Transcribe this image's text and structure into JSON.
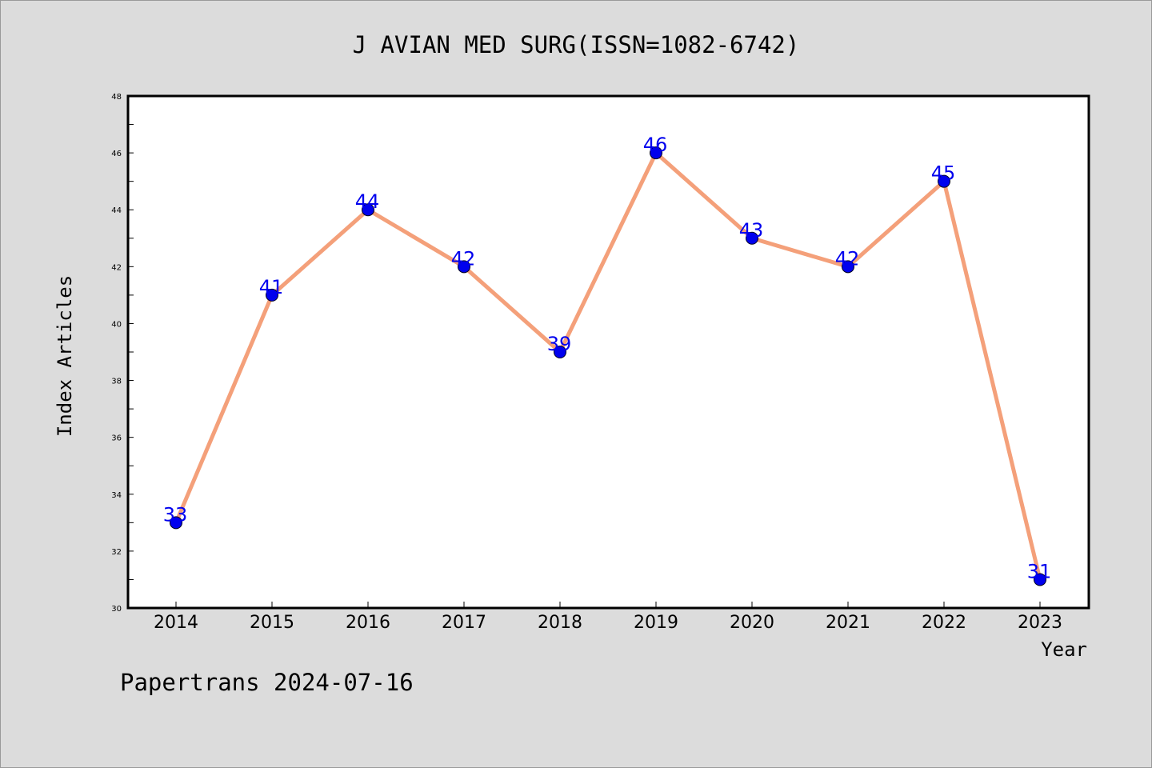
{
  "chart_data": {
    "type": "line",
    "title": "J AVIAN MED SURG(ISSN=1082-6742)",
    "xlabel": "Year",
    "ylabel": "Index Articles",
    "x": [
      "2014",
      "2015",
      "2016",
      "2017",
      "2018",
      "2019",
      "2020",
      "2021",
      "2022",
      "2023"
    ],
    "values": [
      33,
      41,
      44,
      42,
      39,
      46,
      43,
      42,
      45,
      31
    ],
    "ylim": [
      30,
      48
    ],
    "yticks": [
      30,
      32,
      34,
      36,
      38,
      40,
      42,
      44,
      46,
      48
    ],
    "grid": false,
    "line_color": "#f4a07a",
    "marker_color": "#0000ee",
    "label_color": "#0000ee"
  },
  "footer": {
    "watermark": "Papertrans 2024-07-16"
  }
}
